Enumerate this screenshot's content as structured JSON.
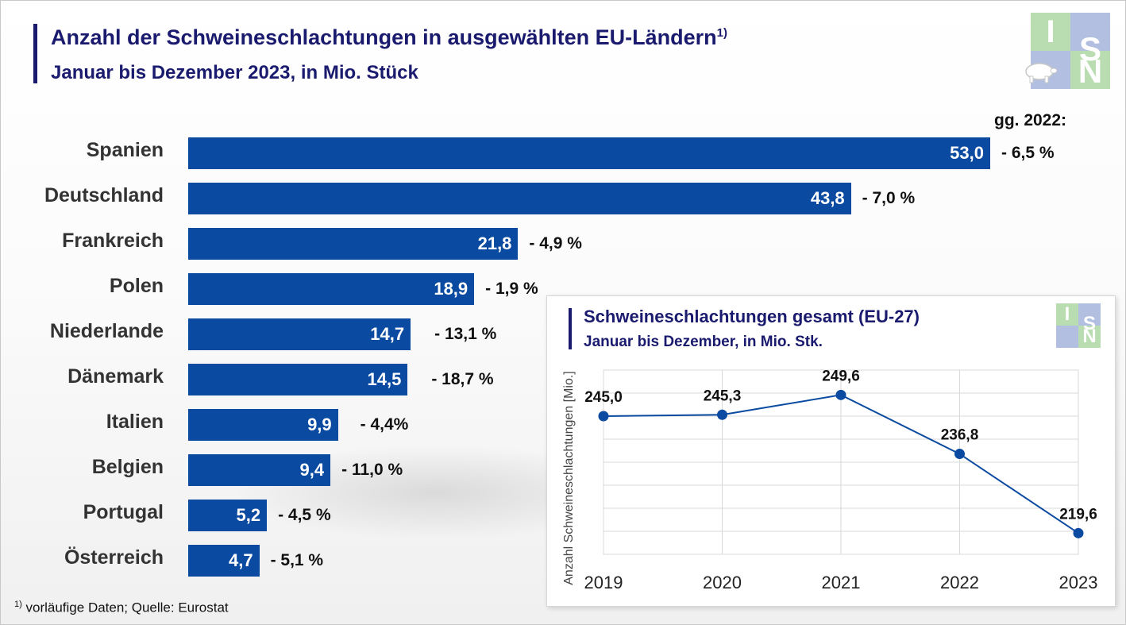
{
  "title": "Anzahl der Schweineschlachtungen in ausgewählten EU-Ländern",
  "title_sup": "1)",
  "subtitle": "Januar bis Dezember 2023, in Mio. Stück",
  "change_header": "gg. 2022:",
  "logo": {
    "letters": [
      "I",
      "S",
      "N"
    ]
  },
  "footnote_sup": "1)",
  "footnote": " vorläufige Daten; Quelle: Eurostat",
  "colors": {
    "bar": "#0a4aa0",
    "title": "#1a1a6e",
    "line": "#0a4aa0",
    "logo_green": "#b9dcb0",
    "logo_blue": "#b3bfe0"
  },
  "chart_data": [
    {
      "type": "bar",
      "orientation": "horizontal",
      "title": "Anzahl der Schweineschlachtungen in ausgewählten EU-Ländern",
      "subtitle": "Januar bis Dezember 2023, in Mio. Stück",
      "categories": [
        "Spanien",
        "Deutschland",
        "Frankreich",
        "Polen",
        "Niederlande",
        "Dänemark",
        "Italien",
        "Belgien",
        "Portugal",
        "Österreich"
      ],
      "values": [
        53.0,
        43.8,
        21.8,
        18.9,
        14.7,
        14.5,
        9.9,
        9.4,
        5.2,
        4.7
      ],
      "value_labels": [
        "53,0",
        "43,8",
        "21,8",
        "18,9",
        "14,7",
        "14,5",
        "9,9",
        "9,4",
        "5,2",
        "4,7"
      ],
      "changes": [
        "- 6,5 %",
        "- 7,0 %",
        "- 4,9 %",
        "- 1,9 %",
        "- 13,1 %",
        "- 18,7 %",
        "- 4,4%",
        "- 11,0 %",
        "- 4,5 %",
        "- 5,1 %"
      ],
      "change_header": "gg. 2022:"
    },
    {
      "type": "line",
      "title": "Schweineschlachtungen gesamt (EU-27)",
      "subtitle": "Januar bis Dezember, in Mio. Stk.",
      "x": [
        "2019",
        "2020",
        "2021",
        "2022",
        "2023"
      ],
      "values": [
        245.0,
        245.3,
        249.6,
        236.8,
        219.6
      ],
      "value_labels": [
        "245,0",
        "245,3",
        "249,6",
        "236,8",
        "219,6"
      ],
      "ylabel": "Anzahl Schweineschlachtungen [Mio.]",
      "ylim": [
        215,
        255
      ],
      "grid": true
    }
  ]
}
